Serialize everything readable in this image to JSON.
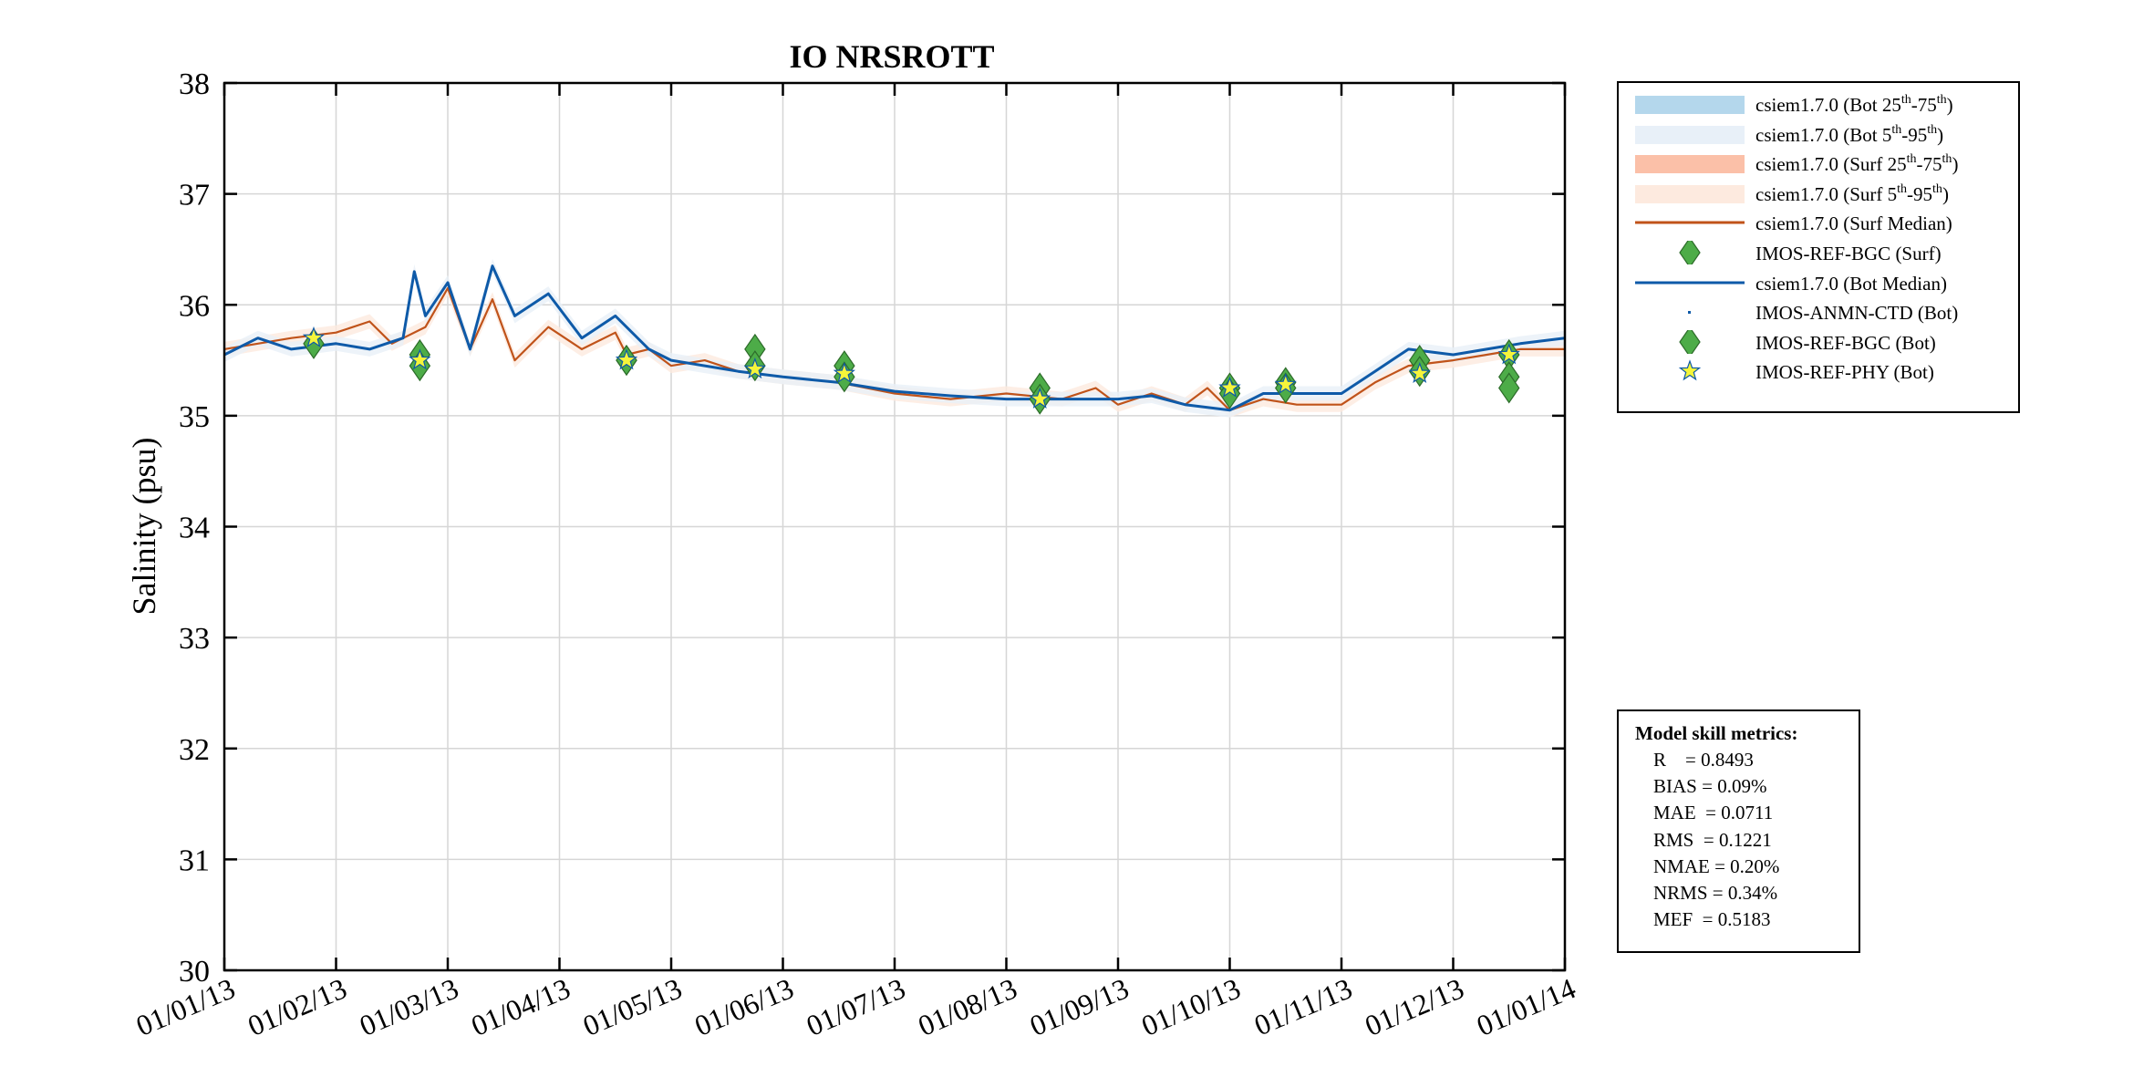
{
  "chart_data": {
    "type": "line",
    "title": "IO NRSROTT",
    "ylabel": "Salinity (psu)",
    "xlabel": "",
    "ylim": [
      30,
      38
    ],
    "yticks": [
      "30",
      "31",
      "32",
      "33",
      "34",
      "35",
      "36",
      "37",
      "38"
    ],
    "xlim": [
      "01/01/13",
      "01/01/14"
    ],
    "xticks": [
      "01/01/13",
      "01/02/13",
      "01/03/13",
      "01/04/13",
      "01/05/13",
      "01/06/13",
      "01/07/13",
      "01/08/13",
      "01/09/13",
      "01/10/13",
      "01/11/13",
      "01/12/13",
      "01/01/14"
    ],
    "grid": true,
    "legend_position": "outside-top-right",
    "colors": {
      "bot_iqr": "#b4d7ec",
      "bot_90": "#e8f0f8",
      "surf_iqr": "#fbc0a8",
      "surf_90": "#fdeadf",
      "surf_median": "#c0531a",
      "bot_median": "#0e5aa8",
      "diamond": "#4dac48",
      "star": "#f5f53a"
    },
    "legend": [
      {
        "key": "bot_iqr",
        "pre": "csiem1.7.0 (Bot 25",
        "s1": "th",
        "mid": "-75",
        "s2": "th",
        "post": ")"
      },
      {
        "key": "bot_90",
        "pre": "csiem1.7.0 (Bot 5",
        "s1": "th",
        "mid": "-95",
        "s2": "th",
        "post": ")"
      },
      {
        "key": "surf_iqr",
        "pre": "csiem1.7.0 (Surf 25",
        "s1": "th",
        "mid": "-75",
        "s2": "th",
        "post": ")"
      },
      {
        "key": "surf_90",
        "pre": "csiem1.7.0 (Surf 5",
        "s1": "th",
        "mid": "-95",
        "s2": "th",
        "post": ")"
      },
      {
        "key": "surf_median",
        "text": "csiem1.7.0 (Surf Median)"
      },
      {
        "key": "bgc_surf",
        "text": "IMOS-REF-BGC (Surf)"
      },
      {
        "key": "bot_median",
        "text": "csiem1.7.0 (Bot Median)"
      },
      {
        "key": "anmn_ctd",
        "text": "IMOS-ANMN-CTD (Bot)"
      },
      {
        "key": "bgc_bot",
        "text": "IMOS-REF-BGC (Bot)"
      },
      {
        "key": "phy_bot",
        "text": "IMOS-REF-PHY (Bot)"
      }
    ],
    "series": [
      {
        "name": "csiem1.7.0 (Surf Median)",
        "x_month": [
          0,
          0.3,
          0.6,
          1.0,
          1.3,
          1.5,
          1.8,
          2.0,
          2.2,
          2.4,
          2.6,
          2.9,
          3.2,
          3.5,
          3.6,
          3.8,
          4.0,
          4.3,
          4.6,
          5.0,
          5.5,
          6.0,
          6.5,
          7.0,
          7.5,
          7.8,
          8.0,
          8.3,
          8.6,
          8.8,
          9.0,
          9.3,
          9.6,
          10.0,
          10.3,
          10.6,
          11.0,
          11.3,
          11.6,
          12.0
        ],
        "y": [
          35.6,
          35.65,
          35.7,
          35.75,
          35.85,
          35.65,
          35.8,
          36.15,
          35.6,
          36.05,
          35.5,
          35.8,
          35.6,
          35.75,
          35.55,
          35.6,
          35.45,
          35.5,
          35.4,
          35.35,
          35.3,
          35.2,
          35.15,
          35.2,
          35.15,
          35.25,
          35.1,
          35.2,
          35.1,
          35.25,
          35.05,
          35.15,
          35.1,
          35.1,
          35.3,
          35.45,
          35.5,
          35.55,
          35.6,
          35.6
        ]
      },
      {
        "name": "csiem1.7.0 (Bot Median)",
        "x_month": [
          0,
          0.3,
          0.6,
          1.0,
          1.3,
          1.6,
          1.7,
          1.8,
          2.0,
          2.2,
          2.4,
          2.6,
          2.9,
          3.2,
          3.5,
          3.8,
          4.0,
          4.3,
          4.6,
          5.0,
          5.5,
          6.0,
          6.5,
          7.0,
          7.5,
          8.0,
          8.3,
          8.6,
          9.0,
          9.3,
          9.6,
          10.0,
          10.3,
          10.6,
          11.0,
          11.3,
          11.6,
          12.0
        ],
        "y": [
          35.55,
          35.7,
          35.6,
          35.65,
          35.6,
          35.7,
          36.3,
          35.9,
          36.2,
          35.6,
          36.35,
          35.9,
          36.1,
          35.7,
          35.9,
          35.6,
          35.5,
          35.45,
          35.4,
          35.35,
          35.3,
          35.22,
          35.18,
          35.15,
          35.15,
          35.15,
          35.18,
          35.1,
          35.05,
          35.2,
          35.2,
          35.2,
          35.4,
          35.6,
          35.55,
          35.6,
          35.65,
          35.7
        ]
      },
      {
        "name": "IMOS-REF-BGC (Surf)",
        "x_month": [
          1.75,
          3.6,
          4.75,
          5.55,
          7.3,
          9.0,
          9.5,
          10.7,
          11.5
        ],
        "y": [
          35.55,
          35.5,
          35.6,
          35.45,
          35.25,
          35.25,
          35.3,
          35.5,
          35.55
        ]
      },
      {
        "name": "IMOS-REF-BGC (Bot)",
        "x_month": [
          0.8,
          1.75,
          3.6,
          4.75,
          5.55,
          7.3,
          9.0,
          9.5,
          10.7,
          11.5,
          11.5
        ],
        "y": [
          35.65,
          35.45,
          35.5,
          35.45,
          35.35,
          35.15,
          35.2,
          35.25,
          35.4,
          35.35,
          35.25
        ]
      },
      {
        "name": "IMOS-REF-PHY (Bot)",
        "x_month": [
          0.8,
          1.75,
          3.6,
          4.75,
          5.55,
          7.3,
          9.0,
          9.5,
          10.7,
          11.5
        ],
        "y": [
          35.7,
          35.5,
          35.5,
          35.42,
          35.38,
          35.15,
          35.25,
          35.28,
          35.38,
          35.55
        ]
      }
    ],
    "metrics": {
      "title": "Model skill metrics:",
      "rows": [
        "R    = 0.8493",
        "BIAS = 0.09%",
        "MAE  = 0.0711",
        "RMS  = 0.1221",
        "NMAE = 0.20%",
        "NRMS = 0.34%",
        "MEF  = 0.5183"
      ]
    }
  }
}
